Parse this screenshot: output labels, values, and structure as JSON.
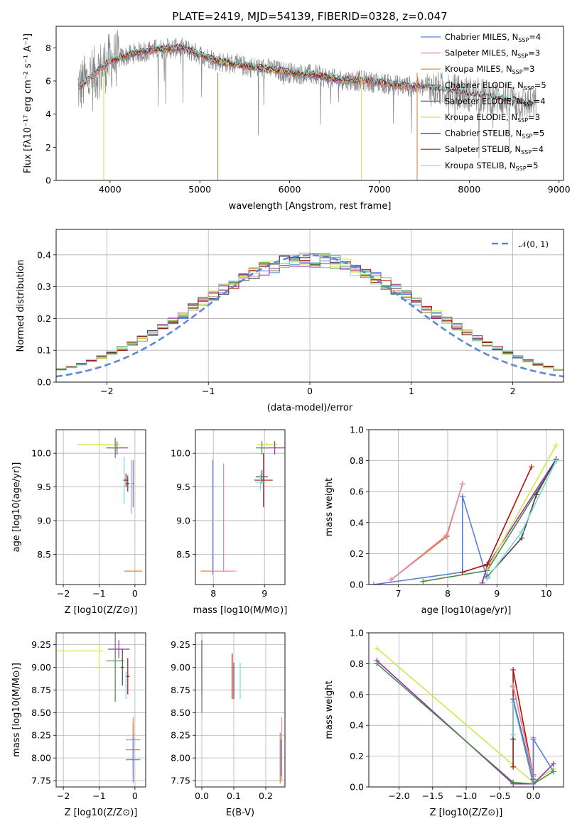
{
  "colors": {
    "Chabrier MILES": "#5b7fd6",
    "Salpeter MILES": "#e48aa8",
    "Kroupa MILES": "#d87a2e",
    "Chabrier ELODIE": "#4d8a4d",
    "Salpeter ELODIE": "#9b2fae",
    "Kroupa ELODIE": "#cde84a",
    "Chabrier STELIB": "#444444",
    "Salpeter STELIB": "#b01010",
    "Kroupa STELIB": "#7dd8d8"
  },
  "chart_data": [
    {
      "type": "line",
      "title": "PLATE=2419, MJD=54139, FIBERID=0328, z=0.047",
      "xlabel": "wavelength [Angstrom, rest frame]",
      "ylabel": "Flux [fλ10⁻¹⁷ erg cm⁻² s⁻¹ A⁻¹]",
      "xlim": [
        3400,
        9050
      ],
      "ylim": [
        0,
        9.3
      ],
      "xticks": [
        "4000",
        "5000",
        "6000",
        "7000",
        "8000",
        "9000"
      ],
      "yticks": [
        "0",
        "2",
        "4",
        "6",
        "8"
      ],
      "continuum_x": [
        3650,
        3800,
        4000,
        4300,
        4500,
        4800,
        5000,
        5200,
        5500,
        5800,
        6000,
        6300,
        6500,
        6800,
        7000,
        7200,
        7500,
        7800,
        8000,
        8200,
        8500,
        8700
      ],
      "continuum_y": [
        5.6,
        6.3,
        7.2,
        7.7,
        7.9,
        8.0,
        7.6,
        7.2,
        6.9,
        6.7,
        6.5,
        6.35,
        6.1,
        6.0,
        5.9,
        5.75,
        5.6,
        5.4,
        5.2,
        5.05,
        4.8,
        4.55
      ],
      "series": [
        {
          "name": "Chabrier MILES",
          "label": "Chabrier MILES, N",
          "nssp": "=4"
        },
        {
          "name": "Salpeter MILES",
          "label": "Salpeter MILES, N",
          "nssp": "=3"
        },
        {
          "name": "Kroupa MILES",
          "label": "Kroupa MILES, N",
          "nssp": "=3"
        },
        {
          "name": "Chabrier ELODIE",
          "label": "Chabrier ELODIE, N",
          "nssp": "=5"
        },
        {
          "name": "Salpeter ELODIE",
          "label": "Salpeter ELODIE, N",
          "nssp": "=4"
        },
        {
          "name": "Kroupa ELODIE",
          "label": "Kroupa ELODIE, N",
          "nssp": "=3"
        },
        {
          "name": "Chabrier STELIB",
          "label": "Chabrier STELIB, N",
          "nssp": "=5"
        },
        {
          "name": "Salpeter STELIB",
          "label": "Salpeter STELIB, N",
          "nssp": "=4"
        },
        {
          "name": "Kroupa STELIB",
          "label": "Kroupa STELIB, N",
          "nssp": "=5"
        }
      ],
      "legend_subscript": "SSP",
      "legend_loc": "upper right"
    },
    {
      "type": "line",
      "xlabel": "(data-model)/error",
      "ylabel": "Normed distribution",
      "xlim": [
        -2.5,
        2.5
      ],
      "ylim": [
        0,
        0.48
      ],
      "xticks": [
        "−2",
        "−1",
        "0",
        "1",
        "2"
      ],
      "yticks": [
        "0.0",
        "0.1",
        "0.2",
        "0.3",
        "0.4"
      ],
      "gaussian_label": "𝒩(0, 1)",
      "histogram_sigma": 1.15,
      "bin_width": 0.1,
      "legend_loc": "upper right",
      "grid": true
    },
    {
      "type": "scatter",
      "xlabel": "Z [log10(Z/Z⊙)]",
      "ylabel": "age  [log10(age/yr)]",
      "xlim": [
        -2.2,
        0.3
      ],
      "ylim": [
        8.05,
        10.35
      ],
      "xticks": [
        "−2",
        "−1",
        "0"
      ],
      "yticks": [
        "8.5",
        "9.0",
        "9.5",
        "10.0"
      ],
      "points": [
        {
          "series": "Kroupa ELODIE",
          "x": -2.3,
          "y": 10.13,
          "xe": 0,
          "ye": 0.1
        },
        {
          "series": "Kroupa ELODIE",
          "x": -1.0,
          "y": 10.13,
          "xe": 0.6,
          "ye": 0.06
        },
        {
          "series": "Salpeter ELODIE",
          "x": -0.5,
          "y": 10.08,
          "xe": 0.3,
          "ye": 0.1
        },
        {
          "series": "Chabrier ELODIE",
          "x": -0.55,
          "y": 10.08,
          "xe": 0.15,
          "ye": 0.15
        },
        {
          "series": "Kroupa STELIB",
          "x": -0.3,
          "y": 9.6,
          "xe": 0.05,
          "ye": 0.35
        },
        {
          "series": "Salpeter STELIB",
          "x": -0.25,
          "y": 9.6,
          "xe": 0.06,
          "ye": 0.1
        },
        {
          "series": "Chabrier STELIB",
          "x": -0.2,
          "y": 9.55,
          "xe": 0.05,
          "ye": 0.12
        },
        {
          "series": "Chabrier MILES",
          "x": -0.05,
          "y": 9.55,
          "xe": 0.03,
          "ye": 0.35
        },
        {
          "series": "Kroupa MILES",
          "x": -0.05,
          "y": 8.25,
          "xe": 0.25,
          "ye": 0
        },
        {
          "series": "Salpeter MILES",
          "x": -0.1,
          "y": 9.5,
          "xe": 0.02,
          "ye": 0.4
        }
      ]
    },
    {
      "type": "scatter",
      "xlabel": "mass [log10(M/M⊙)]",
      "ylabel": "",
      "xlim": [
        7.65,
        9.4
      ],
      "ylim": [
        8.05,
        10.35
      ],
      "xticks": [
        "8",
        "9"
      ],
      "yticks": [
        "8.5",
        "9.0",
        "9.5",
        "10.0"
      ],
      "points": [
        {
          "series": "Kroupa MILES",
          "x": 8.05,
          "y": 8.25,
          "xe": 0.3,
          "ye": 0
        },
        {
          "series": "Salpeter MILES",
          "x": 8.2,
          "y": 8.25,
          "xe": 0.25,
          "ye": 0
        },
        {
          "series": "Chabrier MILES",
          "x": 7.99,
          "y": 9.05,
          "xe": 0,
          "ye": 0.85
        },
        {
          "series": "Salpeter MILES",
          "x": 8.2,
          "y": 9.05,
          "xe": 0,
          "ye": 0.8
        },
        {
          "series": "Kroupa ELODIE",
          "x": 9.05,
          "y": 10.13,
          "xe": 0.2,
          "ye": 0.02
        },
        {
          "series": "Salpeter ELODIE",
          "x": 9.2,
          "y": 10.08,
          "xe": 0.3,
          "ye": 0.1
        },
        {
          "series": "Chabrier ELODIE",
          "x": 8.95,
          "y": 10.08,
          "xe": 0.12,
          "ye": 0.1
        },
        {
          "series": "Salpeter STELIB",
          "x": 8.98,
          "y": 9.6,
          "xe": 0.18,
          "ye": 0.4
        },
        {
          "series": "Chabrier STELIB",
          "x": 8.95,
          "y": 9.65,
          "xe": 0.12,
          "ye": 0.1
        },
        {
          "series": "Kroupa STELIB",
          "x": 8.92,
          "y": 9.57,
          "xe": 0.1,
          "ye": 0.12
        }
      ]
    },
    {
      "type": "line",
      "xlabel": "age  [log10(age/yr)]",
      "ylabel": "mass weight",
      "xlim": [
        6.4,
        10.35
      ],
      "ylim": [
        0,
        1.0
      ],
      "xticks": [
        "7",
        "8",
        "9",
        "10"
      ],
      "yticks": [
        "0.0",
        "0.2",
        "0.4",
        "0.6",
        "0.8",
        "1.0"
      ],
      "series": [
        {
          "name": "Kroupa MILES",
          "x": [
            6.85,
            7.98,
            8.3
          ],
          "y": [
            0.03,
            0.31,
            0.65
          ]
        },
        {
          "name": "Salpeter MILES",
          "x": [
            6.85,
            7.98,
            8.3
          ],
          "y": [
            0.03,
            0.32,
            0.65
          ]
        },
        {
          "name": "Chabrier MILES",
          "x": [
            6.5,
            8.3,
            8.3,
            8.8
          ],
          "y": [
            0.0,
            0.08,
            0.57,
            0.04
          ]
        },
        {
          "name": "Chabrier ELODIE",
          "x": [
            7.5,
            8.8,
            10.2
          ],
          "y": [
            0.02,
            0.09,
            0.8
          ]
        },
        {
          "name": "Salpeter ELODIE",
          "x": [
            8.7,
            8.8,
            10.2
          ],
          "y": [
            0.01,
            0.12,
            0.81
          ]
        },
        {
          "name": "Kroupa ELODIE",
          "x": [
            8.8,
            10.2
          ],
          "y": [
            0.1,
            0.9
          ]
        },
        {
          "name": "Chabrier STELIB",
          "x": [
            8.8,
            9.5,
            9.8,
            10.2
          ],
          "y": [
            0.05,
            0.3,
            0.58,
            0.81
          ]
        },
        {
          "name": "Salpeter STELIB",
          "x": [
            8.3,
            8.8,
            9.7
          ],
          "y": [
            0.08,
            0.13,
            0.76
          ]
        },
        {
          "name": "Kroupa STELIB",
          "x": [
            8.8,
            9.5,
            10.2
          ],
          "y": [
            0.04,
            0.34,
            0.8
          ]
        }
      ]
    },
    {
      "type": "scatter",
      "xlabel": "Z [log10(Z/Z⊙)]",
      "ylabel": "mass [log10(M/M⊙)]",
      "xlim": [
        -2.2,
        0.3
      ],
      "ylim": [
        7.68,
        9.38
      ],
      "xticks": [
        "−2",
        "−1",
        "0"
      ],
      "yticks": [
        "7.75",
        "8.00",
        "8.25",
        "8.50",
        "8.75",
        "9.00",
        "9.25"
      ],
      "points": [
        {
          "series": "Kroupa ELODIE",
          "x": -1.6,
          "y": 9.18,
          "xe": 0.7,
          "ye": 0
        },
        {
          "series": "Kroupa ELODIE",
          "x": -1.0,
          "y": 9.1,
          "xe": 0,
          "ye": 0.15
        },
        {
          "series": "Salpeter ELODIE",
          "x": -0.45,
          "y": 9.2,
          "xe": 0.3,
          "ye": 0.1
        },
        {
          "series": "Chabrier ELODIE",
          "x": -0.55,
          "y": 9.07,
          "xe": 0.25,
          "ye": 0.45
        },
        {
          "series": "Chabrier STELIB",
          "x": -0.35,
          "y": 9.0,
          "xe": 0.05,
          "ye": 0.2
        },
        {
          "series": "Salpeter STELIB",
          "x": -0.2,
          "y": 8.9,
          "xe": 0.05,
          "ye": 0.2
        },
        {
          "series": "Kroupa STELIB",
          "x": -0.25,
          "y": 8.8,
          "xe": 0.03,
          "ye": 0.15
        },
        {
          "series": "Salpeter MILES",
          "x": -0.05,
          "y": 8.2,
          "xe": 0.2,
          "ye": 0.25
        },
        {
          "series": "Kroupa MILES",
          "x": -0.05,
          "y": 8.09,
          "xe": 0.2,
          "ye": 0.3
        },
        {
          "series": "Chabrier MILES",
          "x": -0.05,
          "y": 7.98,
          "xe": 0.2,
          "ye": 0.25
        }
      ]
    },
    {
      "type": "scatter",
      "xlabel": "E(B-V)",
      "ylabel": "",
      "xlim": [
        -0.02,
        0.26
      ],
      "ylim": [
        7.68,
        9.38
      ],
      "xticks": [
        "0.0",
        "0.1",
        "0.2"
      ],
      "yticks": [
        "7.75",
        "8.00",
        "8.25",
        "8.50",
        "8.75",
        "9.00",
        "9.25"
      ],
      "points": [
        {
          "series": "Kroupa ELODIE",
          "x": 0.0,
          "y": 9.1,
          "xe": 0,
          "ye": 0.2
        },
        {
          "series": "Salpeter ELODIE",
          "x": 0.0,
          "y": 9.0,
          "xe": 0,
          "ye": 0.3
        },
        {
          "series": "Chabrier ELODIE",
          "x": 0.0,
          "y": 8.85,
          "xe": 0,
          "ye": 0.35
        },
        {
          "series": "Salpeter STELIB",
          "x": 0.095,
          "y": 8.9,
          "xe": 0,
          "ye": 0.25
        },
        {
          "series": "Chabrier STELIB",
          "x": 0.1,
          "y": 8.85,
          "xe": 0,
          "ye": 0.2
        },
        {
          "series": "Kroupa STELIB",
          "x": 0.12,
          "y": 8.85,
          "xe": 0,
          "ye": 0.2
        },
        {
          "series": "Salpeter MILES",
          "x": 0.25,
          "y": 8.1,
          "xe": 0,
          "ye": 0.35
        },
        {
          "series": "Kroupa MILES",
          "x": 0.245,
          "y": 8.0,
          "xe": 0,
          "ye": 0.28
        },
        {
          "series": "Chabrier MILES",
          "x": 0.248,
          "y": 8.0,
          "xe": 0,
          "ye": 0.2
        }
      ]
    },
    {
      "type": "line",
      "xlabel": "Z [log10(Z/Z⊙)]",
      "ylabel": "mass weight",
      "xlim": [
        -2.45,
        0.45
      ],
      "ylim": [
        0,
        1.0
      ],
      "xticks": [
        "−2.0",
        "−1.5",
        "−1.0",
        "−0.5",
        "0.0"
      ],
      "yticks": [
        "0.0",
        "0.2",
        "0.4",
        "0.6",
        "0.8",
        "1.0"
      ],
      "series": [
        {
          "name": "Kroupa ELODIE",
          "x": [
            -2.33,
            0.0,
            0.3
          ],
          "y": [
            0.9,
            0.03,
            0.12
          ]
        },
        {
          "name": "Salpeter ELODIE",
          "x": [
            -2.33,
            -0.3,
            0.0,
            0.3
          ],
          "y": [
            0.82,
            0.02,
            0.02,
            0.15
          ]
        },
        {
          "name": "Chabrier ELODIE",
          "x": [
            -2.33,
            -0.3,
            0.0,
            0.3
          ],
          "y": [
            0.8,
            0.03,
            0.02,
            0.1
          ]
        },
        {
          "name": "Salpeter STELIB",
          "x": [
            -0.3,
            -0.3,
            0.0
          ],
          "y": [
            0.13,
            0.76,
            0.07
          ]
        },
        {
          "name": "Chabrier STELIB",
          "x": [
            -0.3,
            -0.3,
            0.0
          ],
          "y": [
            0.31,
            0.57,
            0.05
          ]
        },
        {
          "name": "Kroupa STELIB",
          "x": [
            -0.3,
            -0.3,
            0.0
          ],
          "y": [
            0.34,
            0.55,
            0.04
          ]
        },
        {
          "name": "Kroupa MILES",
          "x": [
            -0.3,
            0.0,
            0.0
          ],
          "y": [
            0.65,
            0.08,
            0.31
          ]
        },
        {
          "name": "Salpeter MILES",
          "x": [
            -0.3,
            0.0,
            0.0
          ],
          "y": [
            0.66,
            0.07,
            0.32
          ]
        },
        {
          "name": "Chabrier MILES",
          "x": [
            -0.3,
            0.0,
            0.0,
            0.3
          ],
          "y": [
            0.57,
            0.02,
            0.31,
            0.1
          ]
        }
      ]
    }
  ]
}
